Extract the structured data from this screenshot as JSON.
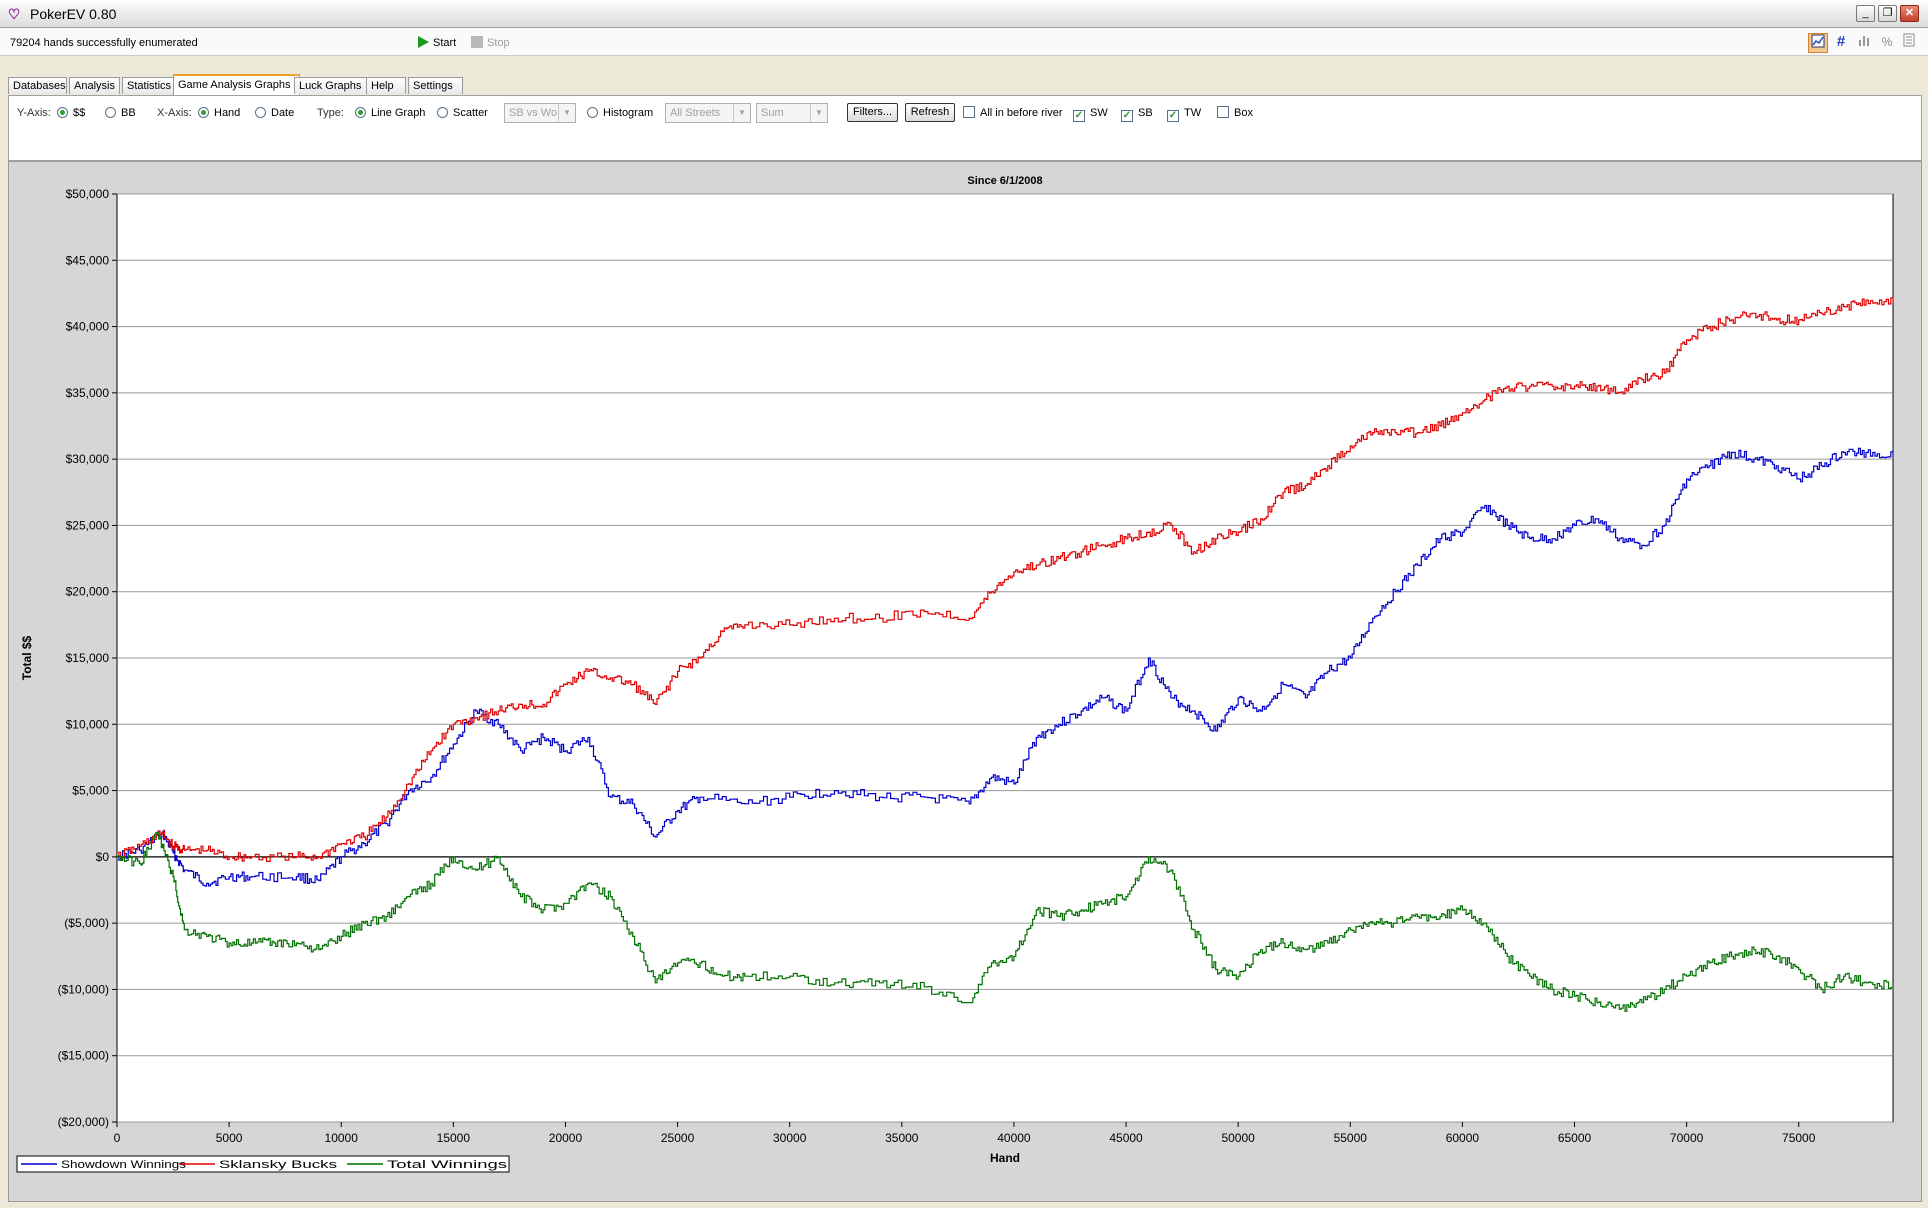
{
  "window": {
    "title": "PokerEV 0.80",
    "minimize_glyph": "_",
    "restore_glyph": "❐",
    "close_glyph": "✕"
  },
  "status": {
    "message": "79204 hands successfully enumerated",
    "start_label": "Start",
    "stop_label": "Stop"
  },
  "right_toolbar": {
    "icons": [
      "chart-icon",
      "hash-icon",
      "bar-chart-icon",
      "percent-icon",
      "list-icon"
    ],
    "hash_glyph": "#",
    "percent_glyph": "%"
  },
  "tabs": [
    "Databases",
    "Analysis",
    "Statistics",
    "Game Analysis Graphs",
    "Luck Graphs",
    "Help",
    "Settings"
  ],
  "active_tab": "Game Analysis Graphs",
  "controls": {
    "yaxis_label": "Y-Axis:",
    "yaxis_dollars": "$$",
    "yaxis_bb": "BB",
    "yaxis_selected": "$$",
    "xaxis_label": "X-Axis:",
    "xaxis_hand": "Hand",
    "xaxis_date": "Date",
    "xaxis_selected": "Hand",
    "type_label": "Type:",
    "type_line": "Line Graph",
    "type_scatter": "Scatter",
    "type_selected": "Line Graph",
    "scatter_combo": "SB vs Wo",
    "histogram_label": "Histogram",
    "streets_combo": "All Streets",
    "sum_combo": "Sum",
    "filters_button": "Filters...",
    "refresh_button": "Refresh",
    "all_in_label": "All in before river",
    "all_in_checked": false,
    "sw_label": "SW",
    "sw_checked": true,
    "sb_label": "SB",
    "sb_checked": true,
    "tw_label": "TW",
    "tw_checked": true,
    "box_label": "Box",
    "box_checked": false
  },
  "colors": {
    "showdown": "#0000cc",
    "sklansky": "#e00000",
    "total": "#007000",
    "accent": "#f0a030"
  },
  "chart_data": {
    "type": "line",
    "title": "Since 6/1/2008",
    "xlabel": "Hand",
    "ylabel": "Total $$",
    "xlim": [
      0,
      79204
    ],
    "ylim": [
      -20000,
      50000
    ],
    "x_ticks": [
      0,
      5000,
      10000,
      15000,
      20000,
      25000,
      30000,
      35000,
      40000,
      45000,
      50000,
      55000,
      60000,
      65000,
      70000,
      75000
    ],
    "x_tick_labels": [
      "0",
      "5000",
      "10000",
      "15000",
      "20000",
      "25000",
      "30000",
      "35000",
      "40000",
      "45000",
      "50000",
      "55000",
      "60000",
      "65000",
      "70000",
      "75000"
    ],
    "y_ticks": [
      50000,
      45000,
      40000,
      35000,
      30000,
      25000,
      20000,
      15000,
      10000,
      5000,
      0,
      -5000,
      -10000,
      -15000,
      -20000
    ],
    "y_tick_labels": [
      "$50,000",
      "$45,000",
      "$40,000",
      "$35,000",
      "$30,000",
      "$25,000",
      "$20,000",
      "$15,000",
      "$10,000",
      "$5,000",
      "$0",
      "($5,000)",
      "($10,000)",
      "($15,000)",
      "($20,000)"
    ],
    "grid": true,
    "legend_position": "bottom-left",
    "series": [
      {
        "name": "Showdown Winnings",
        "color": "#0000cc",
        "x": [
          0,
          1000,
          2000,
          2500,
          3000,
          4000,
          5000,
          6000,
          8000,
          9000,
          10000,
          11000,
          12000,
          13000,
          14000,
          15000,
          16000,
          17000,
          18000,
          19000,
          20000,
          21000,
          22000,
          23000,
          24000,
          25000,
          26000,
          28000,
          30000,
          32000,
          34000,
          36000,
          38000,
          39000,
          40000,
          41000,
          42000,
          43000,
          44000,
          45000,
          46000,
          47000,
          48000,
          49000,
          50000,
          51000,
          52000,
          53000,
          54000,
          55000,
          56000,
          57000,
          58000,
          59000,
          60000,
          61000,
          62000,
          63000,
          64000,
          65000,
          66000,
          67000,
          68000,
          69000,
          70000,
          71000,
          72000,
          73000,
          74000,
          75000,
          76000,
          77000,
          78000,
          79204
        ],
        "values": [
          0,
          500,
          1800,
          300,
          -1000,
          -2000,
          -1500,
          -1500,
          -1500,
          -1800,
          0,
          1000,
          2500,
          5000,
          6000,
          8500,
          11000,
          10000,
          8000,
          9000,
          8000,
          9000,
          4500,
          4000,
          1500,
          3500,
          4500,
          4000,
          4500,
          5000,
          4500,
          4500,
          4000,
          6000,
          5500,
          9000,
          10000,
          11000,
          12000,
          11000,
          15000,
          12000,
          11000,
          9500,
          12000,
          11000,
          13000,
          12000,
          14000,
          15000,
          18000,
          20000,
          22000,
          24000,
          24500,
          26500,
          25000,
          24000,
          24000,
          25000,
          25500,
          24000,
          23500,
          25000,
          28500,
          29500,
          30500,
          30000,
          29500,
          28500,
          29500,
          30500,
          30500,
          30300
        ]
      },
      {
        "name": "Sklansky Bucks",
        "color": "#e00000",
        "x": [
          0,
          1000,
          2000,
          2500,
          3000,
          4000,
          5000,
          6000,
          8000,
          9000,
          10000,
          11000,
          12000,
          13000,
          14000,
          15000,
          16000,
          17000,
          18000,
          19000,
          20000,
          21000,
          22000,
          23000,
          24000,
          25000,
          26000,
          27000,
          28000,
          30000,
          32000,
          34000,
          36000,
          38000,
          39000,
          40000,
          41000,
          42000,
          43000,
          44000,
          45000,
          46000,
          47000,
          48000,
          49000,
          50000,
          51000,
          52000,
          53000,
          54000,
          55000,
          56000,
          57000,
          58000,
          59000,
          60000,
          61000,
          62000,
          63000,
          64000,
          65000,
          66000,
          67000,
          68000,
          69000,
          70000,
          71000,
          72000,
          73000,
          74000,
          75000,
          76000,
          77000,
          78000,
          79204
        ],
        "values": [
          0,
          800,
          1800,
          800,
          500,
          500,
          0,
          0,
          0,
          0,
          1000,
          1500,
          3000,
          5500,
          8000,
          10000,
          10500,
          11000,
          11500,
          11500,
          13000,
          14000,
          13500,
          13000,
          11500,
          14000,
          15000,
          17000,
          17500,
          17500,
          18000,
          18000,
          18500,
          18000,
          20000,
          21500,
          22000,
          22500,
          23000,
          23500,
          24000,
          24500,
          25000,
          23000,
          24000,
          24500,
          25500,
          27500,
          28000,
          29500,
          31000,
          32000,
          32000,
          32000,
          32500,
          33500,
          34500,
          35500,
          35500,
          35500,
          35500,
          35500,
          35000,
          36000,
          36500,
          39000,
          40000,
          40500,
          41000,
          40500,
          40500,
          41000,
          41500,
          42000,
          41800
        ]
      },
      {
        "name": "Total Winnings",
        "color": "#007000",
        "x": [
          0,
          1000,
          1800,
          2500,
          3000,
          4000,
          5000,
          6000,
          7000,
          8000,
          9000,
          10000,
          11000,
          12000,
          13000,
          14000,
          15000,
          16000,
          17000,
          18000,
          19000,
          20000,
          21000,
          22000,
          23000,
          24000,
          25000,
          26000,
          27000,
          28000,
          30000,
          32000,
          34000,
          36000,
          38000,
          39000,
          40000,
          41000,
          42000,
          43000,
          44000,
          45000,
          46000,
          47000,
          48000,
          49000,
          50000,
          51000,
          52000,
          53000,
          54000,
          55000,
          56000,
          57000,
          58000,
          59000,
          60000,
          61000,
          62000,
          63000,
          64000,
          65000,
          66000,
          67000,
          68000,
          69000,
          70000,
          71000,
          72000,
          73000,
          74000,
          75000,
          76000,
          77000,
          78000,
          79204
        ],
        "values": [
          0,
          -500,
          1800,
          -1500,
          -5500,
          -6000,
          -6500,
          -6500,
          -6500,
          -6500,
          -7000,
          -6000,
          -5000,
          -4500,
          -3000,
          -2000,
          0,
          -1000,
          0,
          -3000,
          -4000,
          -3500,
          -2000,
          -3000,
          -6000,
          -9500,
          -8000,
          -8000,
          -9000,
          -9000,
          -9000,
          -9500,
          -9500,
          -9800,
          -11000,
          -8000,
          -7500,
          -4000,
          -4500,
          -4000,
          -3500,
          -3000,
          0,
          -1000,
          -5500,
          -8500,
          -9000,
          -7000,
          -6500,
          -7000,
          -6500,
          -5500,
          -5000,
          -5000,
          -4500,
          -4500,
          -4000,
          -5000,
          -7500,
          -9000,
          -10000,
          -10500,
          -11000,
          -11500,
          -11000,
          -10000,
          -9000,
          -8000,
          -7500,
          -7000,
          -7500,
          -8500,
          -10000,
          -9000,
          -9500,
          -9800
        ]
      }
    ]
  }
}
